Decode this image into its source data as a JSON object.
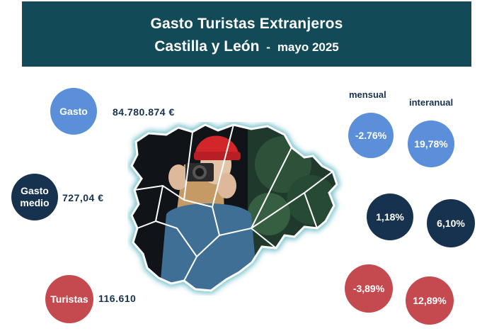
{
  "header": {
    "title": "Gasto Turistas Extranjeros",
    "region": "Castilla y León",
    "separator": "-",
    "period": "mayo 2025"
  },
  "columns": {
    "monthly": "mensual",
    "annual": "interanual"
  },
  "metrics": [
    {
      "label": "Gasto",
      "value": "84.780.874 €",
      "monthly": "-2.76%",
      "annual": "19,78%",
      "color": "#5b8fd9"
    },
    {
      "label_line1": "Gasto",
      "label_line2": "medio",
      "value": "727,04 €",
      "monthly": "1,18%",
      "annual": "6,10%",
      "color": "#17324f"
    },
    {
      "label": "Turistas",
      "value": "116.610",
      "monthly": "-3,89%",
      "annual": "12,89%",
      "color": "#c54a4f"
    }
  ],
  "colors": {
    "header_bg": "#124b57",
    "text_dark": "#17324f"
  },
  "illustration": "map-of-castilla-y-leon-with-tourist-photographer"
}
